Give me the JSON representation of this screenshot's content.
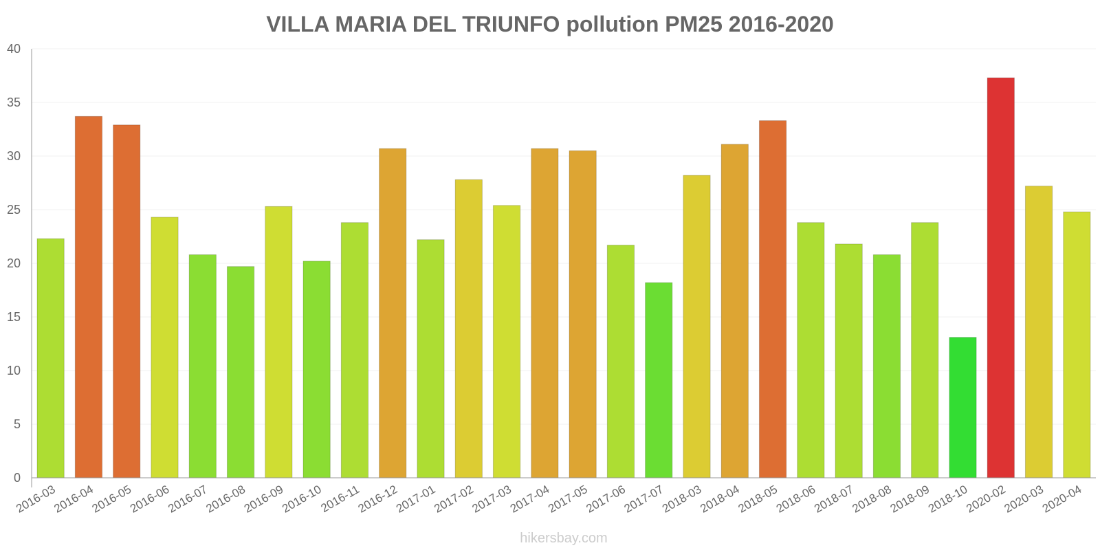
{
  "chart_data": {
    "type": "bar",
    "title": "VILLA MARIA DEL TRIUNFO pollution PM25 2016-2020",
    "xlabel": "",
    "ylabel": "",
    "ylim": [
      0,
      40
    ],
    "yticks": [
      0,
      5,
      10,
      15,
      20,
      25,
      30,
      35,
      40
    ],
    "grid": true,
    "categories": [
      "2016-03",
      "2016-04",
      "2016-05",
      "2016-06",
      "2016-07",
      "2016-08",
      "2016-09",
      "2016-10",
      "2016-11",
      "2016-12",
      "2017-01",
      "2017-02",
      "2017-03",
      "2017-04",
      "2017-05",
      "2017-06",
      "2017-07",
      "2018-03",
      "2018-04",
      "2018-05",
      "2018-06",
      "2018-07",
      "2018-08",
      "2018-09",
      "2018-10",
      "2020-02",
      "2020-03",
      "2020-04"
    ],
    "values": [
      22.3,
      33.7,
      32.9,
      24.3,
      20.8,
      19.7,
      25.3,
      20.2,
      23.8,
      30.7,
      22.2,
      27.8,
      25.4,
      30.7,
      30.5,
      21.7,
      18.2,
      28.2,
      31.1,
      33.3,
      23.8,
      21.8,
      20.8,
      23.8,
      13.1,
      37.3,
      27.2,
      24.8
    ],
    "colors": [
      "#addd33",
      "#dd6e33",
      "#dd6e33",
      "#cfdd33",
      "#8bdd33",
      "#8bdd33",
      "#cfdd33",
      "#8bdd33",
      "#addd33",
      "#dda533",
      "#addd33",
      "#dccc33",
      "#cfdd33",
      "#dda533",
      "#dda533",
      "#addd33",
      "#6bdd33",
      "#dccc33",
      "#dda533",
      "#dd6e33",
      "#addd33",
      "#addd33",
      "#8bdd33",
      "#addd33",
      "#33dd33",
      "#dd3333",
      "#dccc33",
      "#cfdd33"
    ]
  },
  "watermark": "hikersbay.com"
}
